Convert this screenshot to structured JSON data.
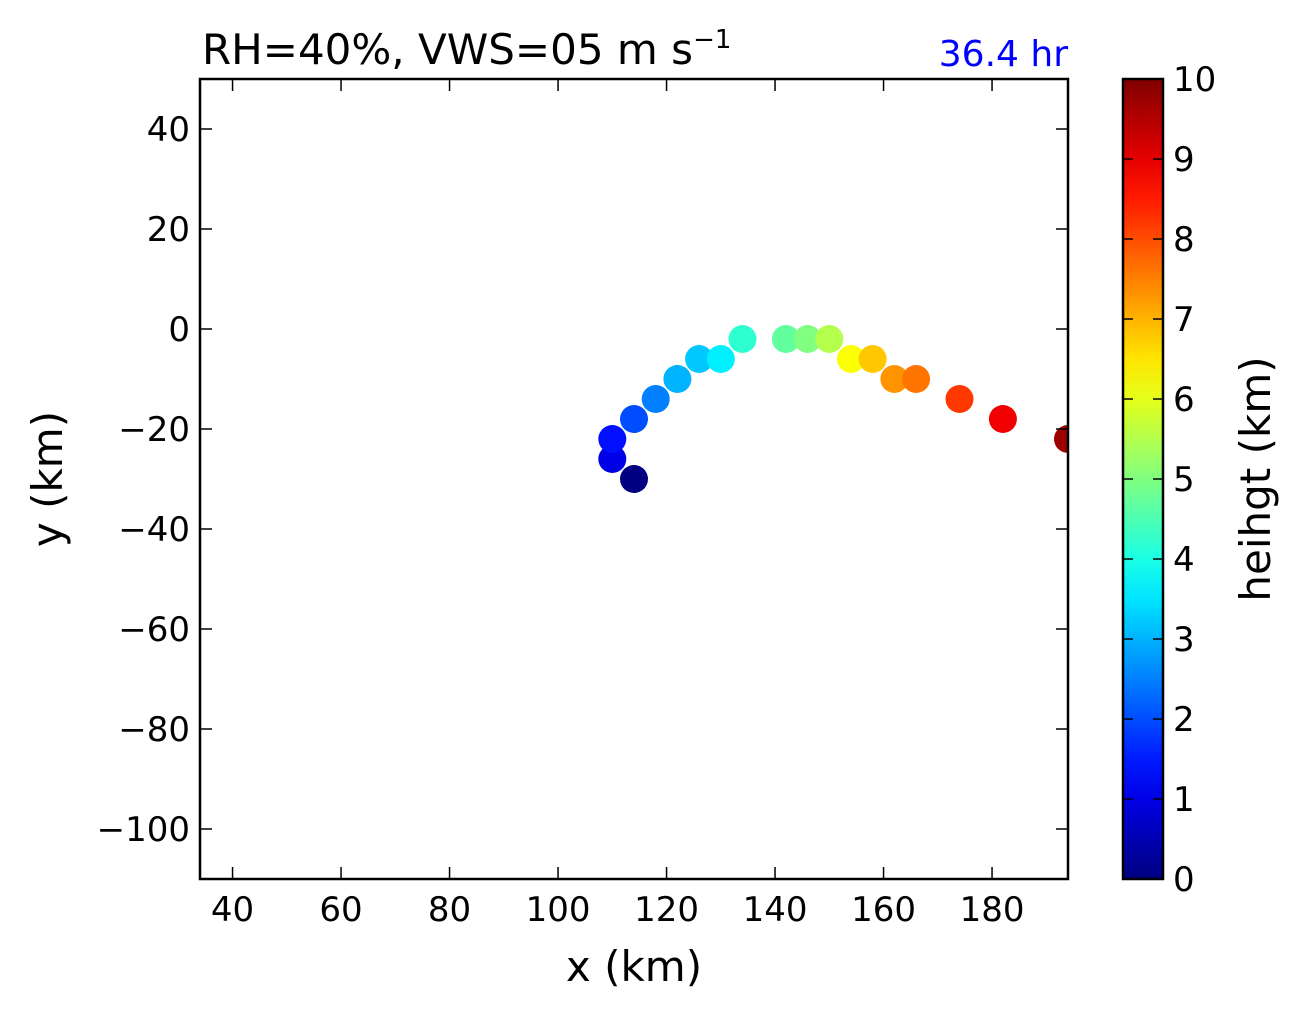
{
  "chart_data": {
    "type": "scatter",
    "title_main": "RH=40%, VWS=05 m s",
    "title_sup": "−1",
    "time_label": "36.4 hr",
    "xlabel": "x (km)",
    "ylabel": "y (km)",
    "xlim": [
      34,
      194
    ],
    "ylim": [
      -110,
      50
    ],
    "xticks": [
      40,
      60,
      80,
      100,
      120,
      140,
      160,
      180
    ],
    "xtick_labels": [
      "40",
      "60",
      "80",
      "100",
      "120",
      "140",
      "160",
      "180"
    ],
    "yticks": [
      40,
      20,
      0,
      -20,
      -40,
      -60,
      -80,
      -100
    ],
    "ytick_labels": [
      "40",
      "20",
      "0",
      "−20",
      "−40",
      "−60",
      "−80",
      "−100"
    ],
    "colorbar": {
      "label": "heihgt (km)",
      "min": 0,
      "max": 10,
      "ticks": [
        0,
        1,
        2,
        3,
        4,
        5,
        6,
        7,
        8,
        9,
        10
      ],
      "tick_labels": [
        "0",
        "1",
        "2",
        "3",
        "4",
        "5",
        "6",
        "7",
        "8",
        "9",
        "10"
      ],
      "colormap": "jet"
    },
    "points": [
      {
        "x": 114,
        "y": -30,
        "height": 0.0
      },
      {
        "x": 110,
        "y": -26,
        "height": 1.0
      },
      {
        "x": 110,
        "y": -22,
        "height": 1.4
      },
      {
        "x": 114,
        "y": -18,
        "height": 2.0
      },
      {
        "x": 118,
        "y": -14,
        "height": 2.5
      },
      {
        "x": 122,
        "y": -10,
        "height": 3.0
      },
      {
        "x": 126,
        "y": -6,
        "height": 3.2
      },
      {
        "x": 130,
        "y": -6,
        "height": 3.6
      },
      {
        "x": 134,
        "y": -2,
        "height": 4.2
      },
      {
        "x": 142,
        "y": -2,
        "height": 4.7
      },
      {
        "x": 146,
        "y": -2,
        "height": 5.0
      },
      {
        "x": 150,
        "y": -2,
        "height": 5.5
      },
      {
        "x": 154,
        "y": -6,
        "height": 6.2
      },
      {
        "x": 158,
        "y": -6,
        "height": 6.8
      },
      {
        "x": 162,
        "y": -10,
        "height": 7.3
      },
      {
        "x": 166,
        "y": -10,
        "height": 7.6
      },
      {
        "x": 174,
        "y": -14,
        "height": 8.2
      },
      {
        "x": 182,
        "y": -18,
        "height": 8.9
      },
      {
        "x": 194,
        "y": -22,
        "height": 9.7
      }
    ]
  }
}
